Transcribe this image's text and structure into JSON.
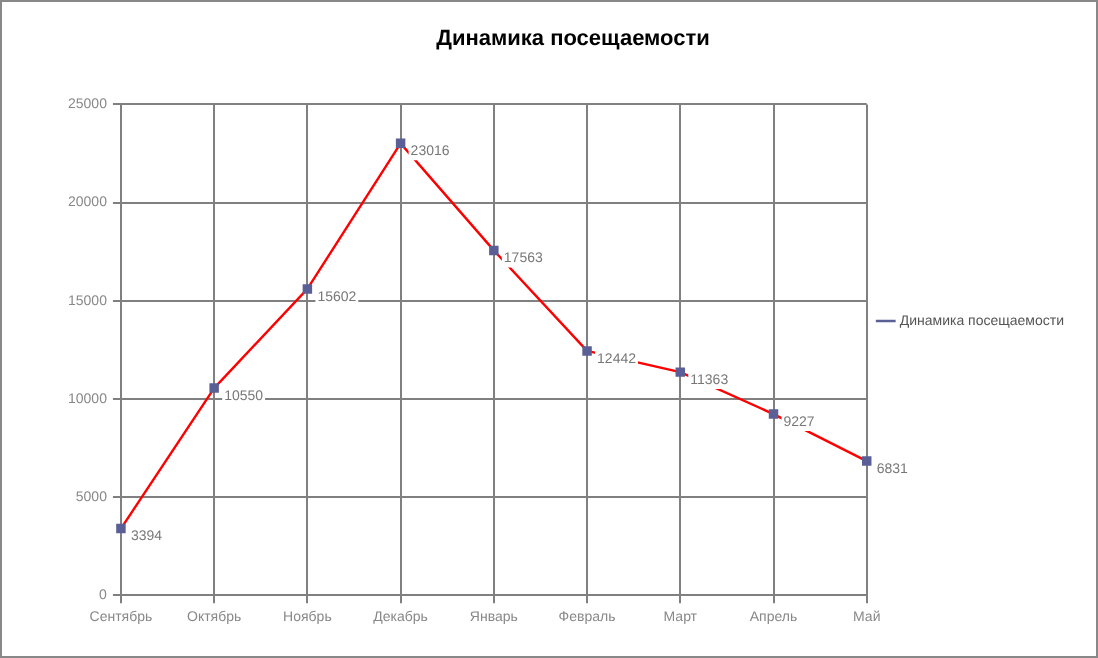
{
  "chart_data": {
    "type": "line",
    "title": "Динамика посещаемости",
    "categories": [
      "Сентябрь",
      "Октябрь",
      "Ноябрь",
      "Декабрь",
      "Январь",
      "Февраль",
      "Март",
      "Апрель",
      "Май"
    ],
    "series": [
      {
        "name": "Динамика посещаемости",
        "color": "#ff0000",
        "values": [
          3394,
          10550,
          15602,
          23016,
          17563,
          12442,
          11363,
          9227,
          6831
        ]
      }
    ],
    "ylim": [
      0,
      25000
    ],
    "yticks": [
      0,
      5000,
      10000,
      15000,
      20000,
      25000
    ],
    "grid": true,
    "legend": "right",
    "marker": "square",
    "data_labels": true
  }
}
